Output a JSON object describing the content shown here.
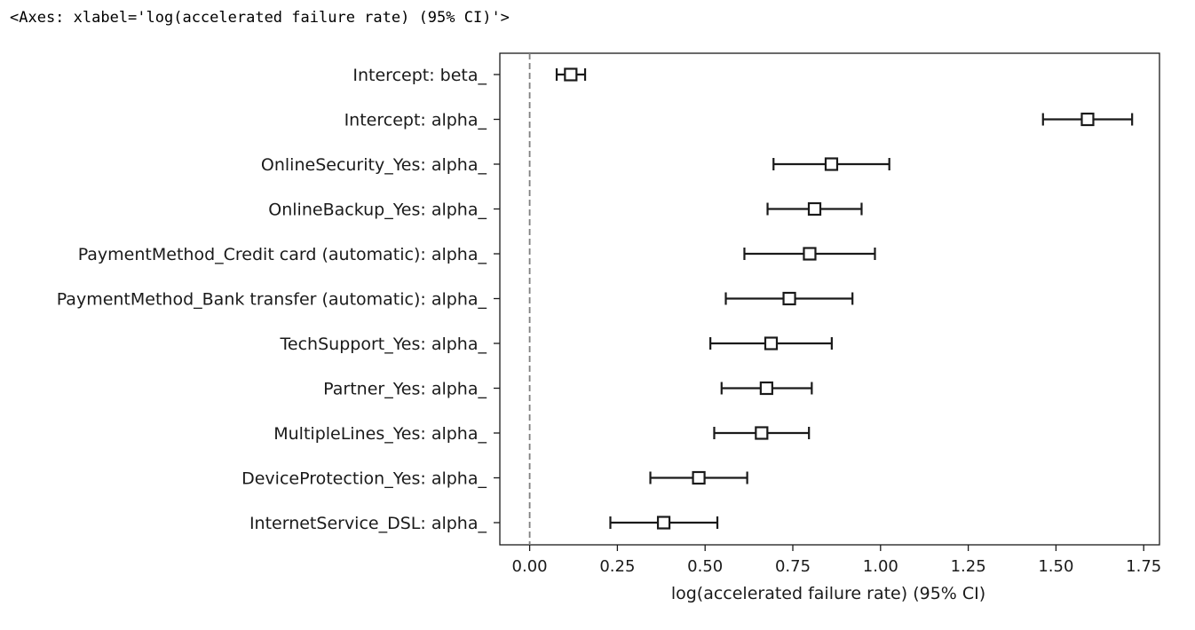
{
  "output_repr": "<Axes: xlabel='log(accelerated failure rate) (95% CI)'>",
  "chart_data": {
    "type": "forest",
    "xlabel": "log(accelerated failure rate) (95% CI)",
    "xlim": [
      -0.085,
      1.795
    ],
    "xticks": [
      "0.00",
      "0.25",
      "0.50",
      "0.75",
      "1.00",
      "1.25",
      "1.50",
      "1.75"
    ],
    "reference_line": 0,
    "rows": [
      {
        "label": "Intercept: beta_",
        "estimate": 0.117,
        "lower": 0.077,
        "upper": 0.158
      },
      {
        "label": "Intercept: alpha_",
        "estimate": 1.59,
        "lower": 1.463,
        "upper": 1.717
      },
      {
        "label": "OnlineSecurity_Yes: alpha_",
        "estimate": 0.86,
        "lower": 0.695,
        "upper": 1.025
      },
      {
        "label": "OnlineBackup_Yes: alpha_",
        "estimate": 0.812,
        "lower": 0.678,
        "upper": 0.946
      },
      {
        "label": "PaymentMethod_Credit card (automatic): alpha_",
        "estimate": 0.798,
        "lower": 0.612,
        "upper": 0.984
      },
      {
        "label": "PaymentMethod_Bank transfer (automatic): alpha_",
        "estimate": 0.74,
        "lower": 0.559,
        "upper": 0.92
      },
      {
        "label": "TechSupport_Yes: alpha_",
        "estimate": 0.688,
        "lower": 0.515,
        "upper": 0.861
      },
      {
        "label": "Partner_Yes: alpha_",
        "estimate": 0.675,
        "lower": 0.547,
        "upper": 0.804
      },
      {
        "label": "MultipleLines_Yes: alpha_",
        "estimate": 0.661,
        "lower": 0.526,
        "upper": 0.796
      },
      {
        "label": "DeviceProtection_Yes: alpha_",
        "estimate": 0.482,
        "lower": 0.344,
        "upper": 0.62
      },
      {
        "label": "InternetService_DSL: alpha_",
        "estimate": 0.382,
        "lower": 0.23,
        "upper": 0.535
      }
    ],
    "colors": {
      "line": "#1a1a1a",
      "marker_fill": "#ffffff",
      "reference": "#808080"
    }
  }
}
